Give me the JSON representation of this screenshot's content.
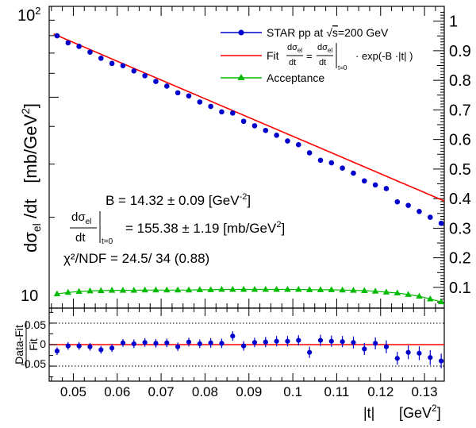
{
  "chart_data": [
    {
      "panel": "main",
      "type": "scatter",
      "ylabel_left": "dσ_el/dt  [mb/GeV^2]",
      "ylabel_left_parts": {
        "d": "dσ",
        "sub": "el",
        "slash": " /dt",
        "unit": "[mb/GeV",
        "unit_sup": "2",
        "unit_close": "]"
      },
      "y_left_scale": "log",
      "y_left_lim": [
        10,
        100
      ],
      "y_left_ticks": [
        {
          "value": 10,
          "label": "10"
        },
        {
          "value": 100,
          "label": "10",
          "sup": "2"
        }
      ],
      "y_right_scale": "linear",
      "y_right_lim": [
        0.03,
        1.05
      ],
      "y_right_ticks": [
        "0.1",
        "0.2",
        "0.3",
        "0.4",
        "0.5",
        "0.6",
        "0.7",
        "0.8",
        "0.9",
        "1"
      ],
      "xlim": [
        0.0445,
        0.1345
      ],
      "legend": {
        "placement": "top-right",
        "entries": [
          {
            "name": "STAR pp at √s=200 GeV",
            "pre": "STAR pp at ",
            "root": "s",
            "post": "=200 GeV",
            "marker": "circle",
            "color": "#0000cc"
          },
          {
            "name": "Fit",
            "color": "#ff0000",
            "prefix": "Fit",
            "frac1_num": "dσ",
            "frac1_num_sub": "el",
            "frac1_den": "dt",
            "eq": "=",
            "frac2_num": "dσ",
            "frac2_num_sub": "el",
            "frac2_den": "dt",
            "bar_sub": "t=0",
            "tail": "· exp(-B ·|t| )"
          },
          {
            "name": "Acceptance",
            "marker": "triangle",
            "color": "#00bb00"
          }
        ]
      },
      "annotations": {
        "B_line": {
          "text": "B =  14.32 ± 0.09 [GeV",
          "sup": "-2",
          "close": "]"
        },
        "norm_line": {
          "num": "dσ",
          "num_sub": "el",
          "den": "dt",
          "bar_sub": "t=0",
          "text": "= 155.38 ± 1.19 [mb/GeV",
          "sup": "2",
          "close": "]"
        },
        "chi2_line": {
          "text": "χ²/NDF = 24.5/ 34 (0.88)"
        }
      },
      "series": [
        {
          "name": "STAR pp at √s=200 GeV",
          "color": "#0000cc",
          "x": [
            0.0463,
            0.0488,
            0.0513,
            0.0538,
            0.0563,
            0.0588,
            0.0613,
            0.0638,
            0.0663,
            0.0688,
            0.0713,
            0.0738,
            0.0763,
            0.0788,
            0.0813,
            0.0838,
            0.0863,
            0.0888,
            0.0913,
            0.0938,
            0.0963,
            0.0988,
            0.1013,
            0.1038,
            0.1063,
            0.1088,
            0.1113,
            0.1138,
            0.1163,
            0.1188,
            0.1213,
            0.1238,
            0.1263,
            0.1288,
            0.1313,
            0.1338
          ],
          "y": [
            79.9,
            75.7,
            73.7,
            70.5,
            67.3,
            64.7,
            63.6,
            61.1,
            58.9,
            56.4,
            54.4,
            51.7,
            50.5,
            48.2,
            46.6,
            44.7,
            44.3,
            41.6,
            40.2,
            38.8,
            37.4,
            35.8,
            34.8,
            32.7,
            30.9,
            30.3,
            29.1,
            28.0,
            26.4,
            25.6,
            24.9,
            22.5,
            21.9,
            20.9,
            20.0,
            19.1
          ]
        },
        {
          "name": "Fit",
          "color": "#ff0000",
          "B": 14.32,
          "norm": 155.38,
          "x_range": [
            0.0455,
            0.1345
          ]
        },
        {
          "name": "Acceptance",
          "color": "#00bb00",
          "x": [
            0.0463,
            0.0488,
            0.0513,
            0.0538,
            0.0563,
            0.0588,
            0.0613,
            0.0638,
            0.0663,
            0.0688,
            0.0713,
            0.0738,
            0.0763,
            0.0788,
            0.0813,
            0.0838,
            0.0863,
            0.0888,
            0.0913,
            0.0938,
            0.0963,
            0.0988,
            0.1013,
            0.1038,
            0.1063,
            0.1088,
            0.1113,
            0.1138,
            0.1163,
            0.1188,
            0.1213,
            0.1238,
            0.1263,
            0.1288,
            0.1313,
            0.1338
          ],
          "y": [
            0.078,
            0.083,
            0.086,
            0.088,
            0.089,
            0.09,
            0.09,
            0.09,
            0.091,
            0.091,
            0.091,
            0.091,
            0.091,
            0.092,
            0.092,
            0.093,
            0.093,
            0.093,
            0.093,
            0.093,
            0.093,
            0.093,
            0.093,
            0.092,
            0.092,
            0.092,
            0.091,
            0.09,
            0.089,
            0.087,
            0.084,
            0.081,
            0.076,
            0.07,
            0.061,
            0.051
          ]
        }
      ]
    },
    {
      "panel": "residual",
      "type": "scatter",
      "ylabel": "Data-Fit / Fit",
      "ylabel_num": "Data-Fit",
      "ylabel_den": "Fit",
      "xlabel_left": "|t|",
      "xlabel_unit": "[GeV",
      "xlabel_unit_sup": "2",
      "xlabel_unit_close": "]",
      "ylim": [
        -0.085,
        0.085
      ],
      "y_ticks": [
        "0.05",
        "0",
        "-0.05"
      ],
      "x_ticks": [
        "0.05",
        "0.06",
        "0.07",
        "0.08",
        "0.09",
        "0.1",
        "0.11",
        "0.12",
        "0.13"
      ],
      "xlim": [
        0.0445,
        0.1345
      ],
      "reference_lines": [
        {
          "y": 0.05,
          "style": "dotted"
        },
        {
          "y": 0,
          "style": "solid-red"
        },
        {
          "y": -0.05,
          "style": "dotted"
        }
      ],
      "series": [
        {
          "name": "residuals",
          "color": "#0000cc",
          "x": [
            0.0463,
            0.0488,
            0.0513,
            0.0538,
            0.0563,
            0.0588,
            0.0613,
            0.0638,
            0.0663,
            0.0688,
            0.0713,
            0.0738,
            0.0763,
            0.0788,
            0.0813,
            0.0838,
            0.0863,
            0.0888,
            0.0913,
            0.0938,
            0.0963,
            0.0988,
            0.1013,
            0.1038,
            0.1063,
            0.1088,
            0.1113,
            0.1138,
            0.1163,
            0.1188,
            0.1213,
            0.1238,
            0.1263,
            0.1288,
            0.1313,
            0.1338
          ],
          "y": [
            -0.015,
            -0.003,
            -0.003,
            -0.005,
            -0.012,
            -0.008,
            0.004,
            0.002,
            0.005,
            0.003,
            0.004,
            -0.005,
            0.006,
            0.002,
            0.004,
            0.003,
            0.02,
            -0.003,
            0.005,
            0.006,
            0.008,
            0.008,
            0.01,
            -0.018,
            0.01,
            0.008,
            0.007,
            0.005,
            -0.01,
            0.003,
            -0.005,
            -0.032,
            -0.018,
            -0.02,
            -0.03,
            -0.038
          ],
          "err": [
            0.009,
            0.009,
            0.009,
            0.009,
            0.009,
            0.009,
            0.009,
            0.01,
            0.01,
            0.01,
            0.01,
            0.01,
            0.01,
            0.01,
            0.011,
            0.011,
            0.011,
            0.011,
            0.011,
            0.012,
            0.012,
            0.012,
            0.012,
            0.013,
            0.013,
            0.013,
            0.013,
            0.014,
            0.014,
            0.014,
            0.015,
            0.015,
            0.016,
            0.016,
            0.017,
            0.017
          ]
        }
      ]
    }
  ]
}
